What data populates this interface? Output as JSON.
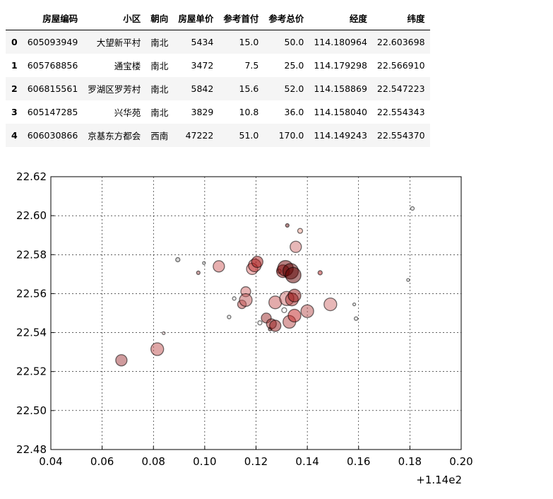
{
  "table": {
    "columns": [
      "",
      "房屋编码",
      "小区",
      "朝向",
      "房屋单价",
      "参考首付",
      "参考总价",
      "经度",
      "纬度"
    ],
    "rows": [
      [
        "0",
        "605093949",
        "大望新平村",
        "南北",
        "5434",
        "15.0",
        "50.0",
        "114.180964",
        "22.603698"
      ],
      [
        "1",
        "605768856",
        "通宝楼",
        "南北",
        "3472",
        "7.5",
        "25.0",
        "114.179298",
        "22.566910"
      ],
      [
        "2",
        "606815561",
        "罗湖区罗芳村",
        "南北",
        "5842",
        "15.6",
        "52.0",
        "114.158869",
        "22.547223"
      ],
      [
        "3",
        "605147285",
        "兴华苑",
        "南北",
        "3829",
        "10.8",
        "36.0",
        "114.158040",
        "22.554343"
      ],
      [
        "4",
        "606030866",
        "京基东方都会",
        "西南",
        "47222",
        "51.0",
        "170.0",
        "114.149243",
        "22.554370"
      ]
    ]
  },
  "chart_data": {
    "type": "scatter",
    "title": "",
    "xlabel": "",
    "ylabel": "",
    "x_offset_label": "+1.14e2",
    "xlim": [
      0.04,
      0.2
    ],
    "ylim": [
      22.48,
      22.62
    ],
    "x_ticks": [
      "0.04",
      "0.06",
      "0.08",
      "0.10",
      "0.12",
      "0.14",
      "0.16",
      "0.18",
      "0.20"
    ],
    "y_ticks": [
      "22.48",
      "22.50",
      "22.52",
      "22.54",
      "22.56",
      "22.58",
      "22.60",
      "22.62"
    ],
    "grid": true,
    "points": [
      {
        "x": 0.0675,
        "y": 22.5258,
        "size": 8,
        "color": "#a0383c"
      },
      {
        "x": 0.0815,
        "y": 22.5315,
        "size": 9,
        "color": "#c05050"
      },
      {
        "x": 0.084,
        "y": 22.5397,
        "size": 2,
        "color": "#e8c8c8"
      },
      {
        "x": 0.0895,
        "y": 22.5774,
        "size": 3,
        "color": "#b0b0b0"
      },
      {
        "x": 0.0975,
        "y": 22.5707,
        "size": 2.5,
        "color": "#a05050"
      },
      {
        "x": 0.0997,
        "y": 22.5757,
        "size": 2,
        "color": "#d0d0d0"
      },
      {
        "x": 0.1055,
        "y": 22.574,
        "size": 8,
        "color": "#d06060"
      },
      {
        "x": 0.1095,
        "y": 22.548,
        "size": 2.5,
        "color": "#d8d8d8"
      },
      {
        "x": 0.1115,
        "y": 22.5575,
        "size": 2.5,
        "color": "#e0e0e0"
      },
      {
        "x": 0.1145,
        "y": 22.5545,
        "size": 6,
        "color": "#c04848"
      },
      {
        "x": 0.116,
        "y": 22.561,
        "size": 7,
        "color": "#d06868"
      },
      {
        "x": 0.116,
        "y": 22.5567,
        "size": 9,
        "color": "#c05858"
      },
      {
        "x": 0.1185,
        "y": 22.5727,
        "size": 8,
        "color": "#e07070"
      },
      {
        "x": 0.1195,
        "y": 22.5745,
        "size": 9,
        "color": "#b83030"
      },
      {
        "x": 0.1205,
        "y": 22.5763,
        "size": 8,
        "color": "#a81818"
      },
      {
        "x": 0.1215,
        "y": 22.545,
        "size": 3,
        "color": "#e8e8e8"
      },
      {
        "x": 0.124,
        "y": 22.5475,
        "size": 7,
        "color": "#9c2a2a"
      },
      {
        "x": 0.1255,
        "y": 22.5418,
        "size": 2.5,
        "color": "#602020"
      },
      {
        "x": 0.126,
        "y": 22.5445,
        "size": 7,
        "color": "#a83030"
      },
      {
        "x": 0.1275,
        "y": 22.5435,
        "size": 8,
        "color": "#901818"
      },
      {
        "x": 0.1275,
        "y": 22.5555,
        "size": 9,
        "color": "#c85858"
      },
      {
        "x": 0.129,
        "y": 22.5715,
        "size": 3,
        "color": "#f0b0b0"
      },
      {
        "x": 0.1305,
        "y": 22.5715,
        "size": 9,
        "color": "#9a1010"
      },
      {
        "x": 0.131,
        "y": 22.5515,
        "size": 3.5,
        "color": "#ffffff"
      },
      {
        "x": 0.1315,
        "y": 22.573,
        "size": 11,
        "color": "#700000"
      },
      {
        "x": 0.132,
        "y": 22.5575,
        "size": 10,
        "color": "#d07070"
      },
      {
        "x": 0.1322,
        "y": 22.595,
        "size": 2.5,
        "color": "#701818"
      },
      {
        "x": 0.133,
        "y": 22.5455,
        "size": 9,
        "color": "#b84848"
      },
      {
        "x": 0.1335,
        "y": 22.5715,
        "size": 11,
        "color": "#580000"
      },
      {
        "x": 0.134,
        "y": 22.557,
        "size": 9,
        "color": "#a82828"
      },
      {
        "x": 0.1345,
        "y": 22.5695,
        "size": 11,
        "color": "#600000"
      },
      {
        "x": 0.135,
        "y": 22.559,
        "size": 9,
        "color": "#901010"
      },
      {
        "x": 0.135,
        "y": 22.5487,
        "size": 9,
        "color": "#c02020"
      },
      {
        "x": 0.1355,
        "y": 22.584,
        "size": 8,
        "color": "#d07070"
      },
      {
        "x": 0.1372,
        "y": 22.5922,
        "size": 3.5,
        "color": "#f0a090"
      },
      {
        "x": 0.14,
        "y": 22.551,
        "size": 9,
        "color": "#b85050"
      },
      {
        "x": 0.145,
        "y": 22.5707,
        "size": 3,
        "color": "#b82020"
      },
      {
        "x": 0.149,
        "y": 22.5545,
        "size": 9,
        "color": "#d07070"
      },
      {
        "x": 0.1583,
        "y": 22.5545,
        "size": 2,
        "color": "#e0e0e0"
      },
      {
        "x": 0.159,
        "y": 22.5472,
        "size": 2.5,
        "color": "#d8d8d8"
      },
      {
        "x": 0.1793,
        "y": 22.567,
        "size": 2,
        "color": "#e8e8e8"
      },
      {
        "x": 0.181,
        "y": 22.6037,
        "size": 2.5,
        "color": "#e0e0e0"
      }
    ]
  }
}
